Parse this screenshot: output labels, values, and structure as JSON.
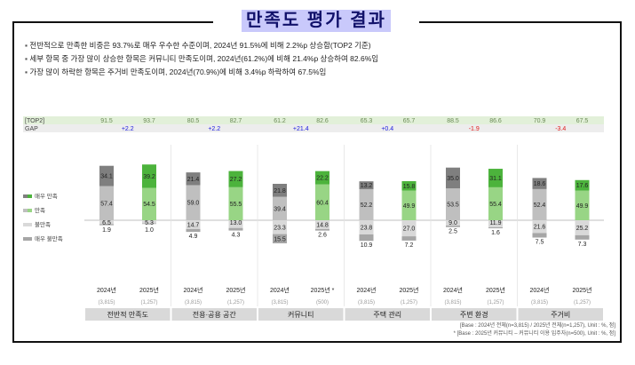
{
  "title": "만족도 평가 결과",
  "bullets": [
    "전반적으로 만족한 비중은 93.7%로 매우 우수한 수준이며, 2024년 91.5%에 비해 2.2%p 상승함(TOP2 기준)",
    "세부 항목 중 가장 많이 상승한 항목은 커뮤니티 만족도이며, 2024년(61.2%)에 비해 21.4%p 상승하여 82.6%임",
    "가장 많이 하락한 항목은 주거비 만족도이며, 2024년(70.9%)에 비해 3.4%p 하락하여 67.5%임"
  ],
  "footnotes": [
    "[Base : 2024년 전체(n=3,815) / 2025년 전체(n=1,257), Unit : %, 점]",
    "* [Base : 2025년 커뮤니티 – 커뮤니티 이용 입주자(n=500), Unit : %, 점]"
  ],
  "chart_data": {
    "type": "bar",
    "stacked": true,
    "row_labels": {
      "top2": "[TOP2]",
      "gap": "GAP"
    },
    "legend": [
      "매우 만족",
      "만족",
      "불만족",
      "매우 불만족"
    ],
    "colors": {
      "2024": [
        "#7f7f7f",
        "#bfbfbf",
        "#d9d9d9",
        "#a6a6a6"
      ],
      "2025": [
        "#4cb33c",
        "#98d585",
        "#d9d9d9",
        "#a6a6a6"
      ],
      "gap_pos": "#1a1adf",
      "gap_neg": "#e01b1b",
      "top2_band": "#e2f0d9",
      "gap_band": "#ededed"
    },
    "categories": [
      {
        "name": "전반적 만족도",
        "gap": "+2.2",
        "bars": [
          {
            "year": "2024년",
            "n": "(3,815)",
            "top2": "91.5",
            "values": [
              34.1,
              57.4,
              6.5,
              1.9
            ]
          },
          {
            "year": "2025년",
            "n": "(1,257)",
            "top2": "93.7",
            "values": [
              39.2,
              54.5,
              5.3,
              1.0
            ]
          }
        ]
      },
      {
        "name": "전용·공용 공간",
        "gap": "+2.2",
        "bars": [
          {
            "year": "2024년",
            "n": "(3,815)",
            "top2": "80.5",
            "values": [
              21.4,
              59.0,
              14.7,
              4.9
            ]
          },
          {
            "year": "2025년",
            "n": "(1,257)",
            "top2": "82.7",
            "values": [
              27.2,
              55.5,
              13.0,
              4.3
            ]
          }
        ]
      },
      {
        "name": "커뮤니티",
        "gap": "+21.4",
        "bars": [
          {
            "year": "2024년",
            "n": "(3,815)",
            "top2": "61.2",
            "values": [
              21.8,
              39.4,
              23.3,
              15.5
            ]
          },
          {
            "year": "2025년 *",
            "n": "(500)",
            "top2": "82.6",
            "values": [
              22.2,
              60.4,
              14.8,
              2.6
            ]
          }
        ]
      },
      {
        "name": "주택 관리",
        "gap": "+0.4",
        "bars": [
          {
            "year": "2024년",
            "n": "(3,815)",
            "top2": "65.3",
            "values": [
              13.2,
              52.2,
              23.8,
              10.9
            ]
          },
          {
            "year": "2025년",
            "n": "(1,257)",
            "top2": "65.7",
            "values": [
              15.8,
              49.9,
              27.0,
              7.2
            ]
          }
        ]
      },
      {
        "name": "주변 환경",
        "gap": "-1.9",
        "bars": [
          {
            "year": "2024년",
            "n": "(3,815)",
            "top2": "88.5",
            "values": [
              35.0,
              53.5,
              9.0,
              2.5
            ]
          },
          {
            "year": "2025년",
            "n": "(1,257)",
            "top2": "86.6",
            "values": [
              31.1,
              55.4,
              11.9,
              1.6
            ]
          }
        ]
      },
      {
        "name": "주거비",
        "gap": "-3.4",
        "bars": [
          {
            "year": "2024년",
            "n": "(3,815)",
            "top2": "70.9",
            "values": [
              18.6,
              52.4,
              21.6,
              7.5
            ]
          },
          {
            "year": "2025년",
            "n": "(1,257)",
            "top2": "67.5",
            "values": [
              17.6,
              49.9,
              25.2,
              7.3
            ]
          }
        ]
      }
    ]
  }
}
